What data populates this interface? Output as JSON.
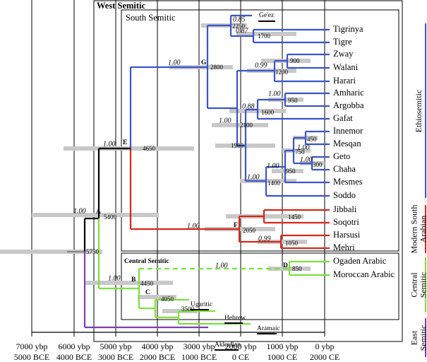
{
  "boxes": {
    "west": "West Semitic",
    "south": "South Semitic",
    "central": "Central Semitic"
  },
  "tips": [
    "Tigrinya",
    "Tigre",
    "Zway",
    "Walani",
    "Harari",
    "Amharic",
    "Argobba",
    "Gafat",
    "Innemor",
    "Mesqan",
    "Geto",
    "Chaha",
    "Mesmes",
    "Soddo",
    "Jibbali",
    "Soqotri",
    "Harsusi",
    "Mehri",
    "Ogaden Arabic",
    "Moroccan Arabic"
  ],
  "extinct": [
    "Ge'ez",
    "Ugaritic",
    "Hebrew",
    "Aramaic",
    "Akkadian"
  ],
  "nodes": [
    {
      "age": 2250,
      "posterior": "0.85"
    },
    {
      "age": 1700,
      "posterior": "0.87"
    },
    {
      "age": 2800,
      "letter": "G",
      "posterior": "1.00"
    },
    {
      "age": 900
    },
    {
      "age": 1200,
      "posterior": "0.99"
    },
    {
      "age": 950,
      "posterior": "1.00"
    },
    {
      "age": 1600,
      "posterior": "0.88"
    },
    {
      "age": 2100,
      "posterior": "1.00"
    },
    {
      "age": 1900
    },
    {
      "age": 450
    },
    {
      "age": 750,
      "posterior": "1.00"
    },
    {
      "age": 300,
      "posterior": "1.00"
    },
    {
      "age": 950,
      "posterior": "1.00"
    },
    {
      "age": 1400,
      "posterior": "1.00"
    },
    {
      "age": 4650,
      "letter": "E",
      "posterior": "1.00"
    },
    {
      "age": 1450
    },
    {
      "age": 2050,
      "letter": "F",
      "posterior": "1.00"
    },
    {
      "age": 1050,
      "posterior": "0.99"
    },
    {
      "age": 5400,
      "letter": "A",
      "posterior": "1.00"
    },
    {
      "age": 5750
    },
    {
      "age": 850,
      "letter": "D",
      "posterior": "1.00"
    },
    {
      "age": 4450,
      "letter": "B",
      "posterior": "1.00"
    },
    {
      "age": 4050,
      "letter": "C"
    },
    {
      "age": 3500
    }
  ],
  "axis": {
    "ybp": [
      "7000 ybp",
      "6000 ybp",
      "5000 ybp",
      "4000 ybp",
      "3000 ybp",
      "2000 ybp",
      "1000 ybp",
      "0 ybp"
    ],
    "era": [
      "5000 BCE",
      "4000 BCE",
      "3000 BCE",
      "2000 BCE",
      "1000 BCE",
      "0 CE",
      "1000 CE",
      "2000 CE"
    ]
  },
  "groups": [
    {
      "lines": [
        "Ethiosemitic"
      ],
      "color": "#3b55c9"
    },
    {
      "lines": [
        "Modern South",
        "Arabian"
      ],
      "color": "#d6281a"
    },
    {
      "lines": [
        "Central",
        "Semitic"
      ],
      "color": "#7de03c"
    },
    {
      "lines": [
        "East",
        "Semitic"
      ],
      "color": "#7b3fb2"
    }
  ]
}
